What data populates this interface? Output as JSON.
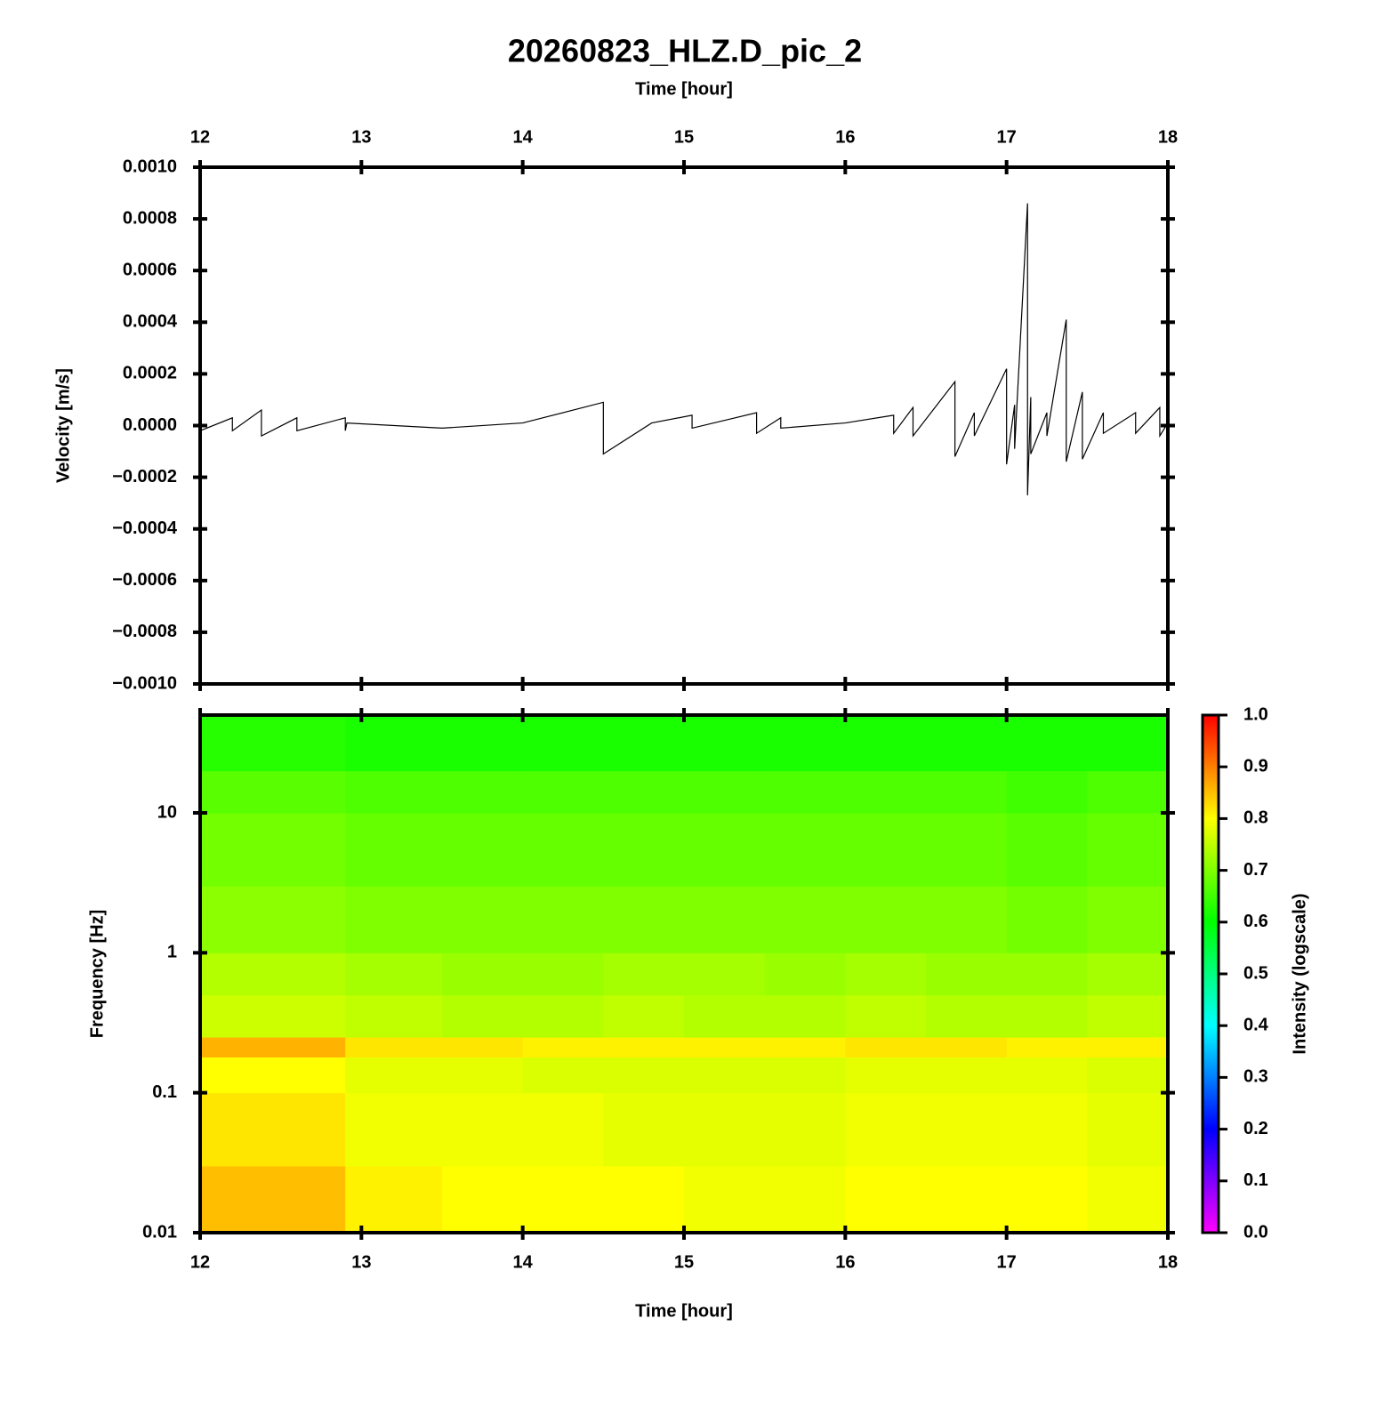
{
  "chart_data": [
    {
      "type": "line",
      "title": "20260823_HLZ.D_pic_2",
      "xlabel": "Time [hour]",
      "xaxis_position": "top",
      "ylabel": "Velocity [m/s]",
      "xlim": [
        12,
        18
      ],
      "xticks": [
        12,
        13,
        14,
        15,
        16,
        17,
        18
      ],
      "ylim": [
        -0.001,
        0.001
      ],
      "yticks": [
        {
          "value": 0.001,
          "label": "0.0010"
        },
        {
          "value": 0.0008,
          "label": "0.0008"
        },
        {
          "value": 0.0006,
          "label": "0.0006"
        },
        {
          "value": 0.0004,
          "label": "0.0004"
        },
        {
          "value": 0.0002,
          "label": "0.0002"
        },
        {
          "value": 0,
          "label": "0.0000"
        },
        {
          "value": -0.0002,
          "label": "−0.0002"
        },
        {
          "value": -0.0004,
          "label": "−0.0004"
        },
        {
          "value": -0.0006,
          "label": "−0.0006"
        },
        {
          "value": -0.0008,
          "label": "−0.0008"
        },
        {
          "value": -0.001,
          "label": "−0.0010"
        }
      ],
      "color": "#000000",
      "x": [
        12.0,
        12.0,
        12.2,
        12.2,
        12.38,
        12.38,
        12.6,
        12.6,
        12.9,
        12.9,
        12.91,
        13.5,
        14.0,
        14.5,
        14.5,
        14.8,
        15.05,
        15.05,
        15.45,
        15.45,
        15.6,
        15.6,
        16.0,
        16.3,
        16.3,
        16.42,
        16.42,
        16.68,
        16.68,
        16.8,
        16.8,
        17.0,
        17.0,
        17.05,
        17.05,
        17.13,
        17.13,
        17.15,
        17.15,
        17.25,
        17.25,
        17.37,
        17.37,
        17.47,
        17.47,
        17.6,
        17.6,
        17.8,
        17.8,
        17.95,
        17.95,
        18.0
      ],
      "values": [
        2e-05,
        -2e-05,
        3e-05,
        -2e-05,
        6e-05,
        -4e-05,
        3e-05,
        -2e-05,
        3e-05,
        -2e-05,
        1e-05,
        -1e-05,
        1e-05,
        9e-05,
        -0.00011,
        1e-05,
        4e-05,
        -1e-05,
        5e-05,
        -3e-05,
        3e-05,
        -1e-05,
        1e-05,
        4e-05,
        -3e-05,
        7e-05,
        -4e-05,
        0.00017,
        -0.00012,
        5e-05,
        -4e-05,
        0.00022,
        -0.00015,
        8e-05,
        -9e-05,
        0.00086,
        -0.00027,
        0.00011,
        -0.00011,
        5e-05,
        -4e-05,
        0.00041,
        -0.00014,
        0.00013,
        -0.00013,
        5e-05,
        -3e-05,
        5e-05,
        -3e-05,
        7e-05,
        -4e-05,
        1e-05
      ]
    },
    {
      "type": "heatmap",
      "xlabel": "Time [hour]",
      "xaxis_position": "bottom",
      "ylabel": "Frequency [Hz]",
      "xlim": [
        12,
        18
      ],
      "xticks": [
        12,
        13,
        14,
        15,
        16,
        17,
        18
      ],
      "ylim": [
        0.01,
        50
      ],
      "yscale": "log",
      "yticks": [
        0.01,
        0.1,
        1,
        10
      ],
      "x": [
        12,
        12.9,
        13.5,
        14,
        14.5,
        15,
        15.5,
        16,
        16.5,
        17,
        17.5,
        18
      ],
      "y": [
        0.01,
        0.03,
        0.1,
        0.18,
        0.25,
        0.5,
        1,
        3,
        10,
        20,
        50
      ],
      "values": [
        [
          0.85,
          0.81,
          0.8,
          0.8,
          0.8,
          0.79,
          0.79,
          0.8,
          0.8,
          0.8,
          0.79
        ],
        [
          0.82,
          0.79,
          0.79,
          0.79,
          0.78,
          0.78,
          0.78,
          0.79,
          0.79,
          0.79,
          0.78
        ],
        [
          0.8,
          0.78,
          0.78,
          0.77,
          0.77,
          0.77,
          0.77,
          0.78,
          0.78,
          0.78,
          0.77
        ],
        [
          0.86,
          0.82,
          0.82,
          0.81,
          0.81,
          0.81,
          0.81,
          0.82,
          0.82,
          0.81,
          0.81
        ],
        [
          0.76,
          0.75,
          0.74,
          0.74,
          0.75,
          0.74,
          0.74,
          0.75,
          0.74,
          0.74,
          0.75
        ],
        [
          0.74,
          0.73,
          0.72,
          0.72,
          0.73,
          0.73,
          0.72,
          0.73,
          0.72,
          0.72,
          0.73
        ],
        [
          0.71,
          0.7,
          0.7,
          0.7,
          0.7,
          0.7,
          0.7,
          0.7,
          0.7,
          0.69,
          0.7
        ],
        [
          0.69,
          0.68,
          0.68,
          0.68,
          0.68,
          0.68,
          0.68,
          0.68,
          0.68,
          0.67,
          0.68
        ],
        [
          0.67,
          0.66,
          0.66,
          0.66,
          0.66,
          0.66,
          0.66,
          0.66,
          0.66,
          0.65,
          0.66
        ],
        [
          0.63,
          0.62,
          0.62,
          0.62,
          0.62,
          0.62,
          0.62,
          0.62,
          0.62,
          0.62,
          0.62
        ]
      ],
      "colormap": [
        "#ff00ff",
        "#0000ff",
        "#00ffff",
        "#00ff00",
        "#ffff00",
        "#ff0000"
      ],
      "clim": [
        0,
        1
      ],
      "cticks": [
        {
          "value": 0,
          "label": "0.0"
        },
        0.1,
        0.2,
        0.3,
        0.4,
        0.5,
        0.6,
        0.7,
        0.8,
        0.9,
        {
          "value": 1,
          "label": "1.0"
        }
      ],
      "clabel": "Intensity (logscale)"
    }
  ]
}
